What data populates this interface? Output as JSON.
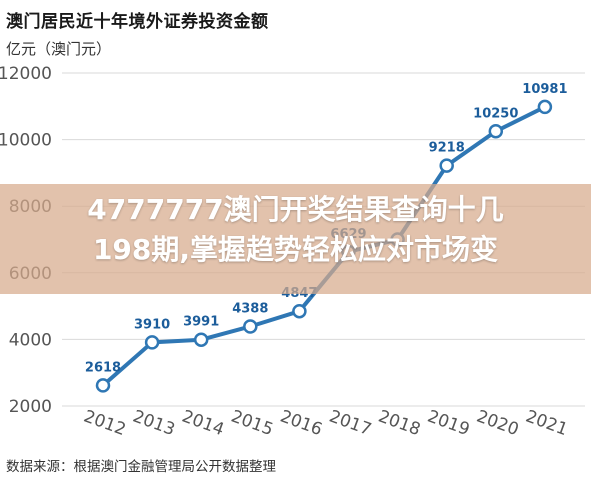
{
  "header": {
    "title": "澳门居民近十年境外证券投资金额",
    "unit": "亿元（澳门元）"
  },
  "footer": {
    "source": "数据来源：根据澳门金融管理局公开数据整理"
  },
  "overlay": {
    "line1": "4777777澳门开奖结果查询十几",
    "line2": "198期,掌握趋势轻松应对市场变"
  },
  "colors": {
    "line": "#2f77b4",
    "label": "#1c5d9b",
    "grid": "#d9d9d9",
    "overlay": "#d7aa8c"
  },
  "chart_data": {
    "type": "line",
    "title": "澳门居民近十年境外证券投资金额",
    "ylabel": "亿元（澳门元）",
    "categories": [
      "2012",
      "2013",
      "2014",
      "2015",
      "2016",
      "2017",
      "2018",
      "2019",
      "2020",
      "2021"
    ],
    "values": [
      2618,
      3910,
      3991,
      4388,
      4847,
      6629,
      7000,
      9218,
      10250,
      10981
    ],
    "data_labels": [
      "2618",
      "3910",
      "3991",
      "4388",
      "4847",
      "6629",
      "",
      "9218",
      "10250",
      "10981"
    ],
    "yticks": [
      2000,
      4000,
      6000,
      8000,
      10000,
      12000
    ],
    "ytick_labels": [
      "2000",
      "4000",
      "6000",
      "8000",
      "10000",
      "12000"
    ],
    "ylim": [
      2000,
      12000
    ],
    "grid": true
  }
}
